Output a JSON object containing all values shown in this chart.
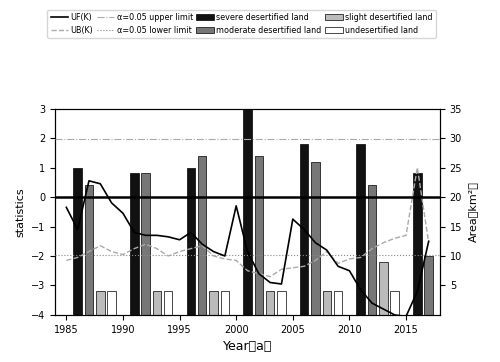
{
  "years": [
    1985,
    1986,
    1987,
    1988,
    1989,
    1990,
    1991,
    1992,
    1993,
    1994,
    1995,
    1996,
    1997,
    1998,
    1999,
    2000,
    2001,
    2002,
    2003,
    2004,
    2005,
    2006,
    2007,
    2008,
    2009,
    2010,
    2011,
    2012,
    2013,
    2014,
    2015,
    2016,
    2017
  ],
  "UF_K": [
    -0.35,
    -1.1,
    0.55,
    0.45,
    -0.2,
    -0.55,
    -1.2,
    -1.3,
    -1.3,
    -1.35,
    -1.45,
    -1.2,
    -1.6,
    -1.85,
    -2.0,
    -0.3,
    -1.85,
    -2.6,
    -2.9,
    -2.95,
    -0.75,
    -1.1,
    -1.55,
    -1.8,
    -2.35,
    -2.5,
    -3.15,
    -3.6,
    -3.8,
    -4.0,
    -4.05,
    -3.2,
    -1.5
  ],
  "UB_K_full": [
    -2.15,
    -2.05,
    -1.85,
    -1.65,
    -1.85,
    -1.95,
    -1.75,
    -1.6,
    -1.75,
    -2.0,
    -1.85,
    -1.75,
    -1.65,
    -2.0,
    -2.1,
    -2.15,
    -2.5,
    -2.6,
    -2.7,
    -2.45,
    -2.4,
    -2.35,
    -2.15,
    -1.85,
    -2.25,
    -2.1,
    -2.05,
    -1.75,
    -1.55,
    -1.4,
    -1.3,
    1.0,
    -1.55
  ],
  "upper_limit": 1.96,
  "lower_limit": -1.96,
  "bar_years_severe": [
    1986,
    1991,
    1996,
    2001,
    2006,
    2011,
    2016
  ],
  "bar_severe": [
    25,
    24,
    25,
    36,
    29,
    29,
    24
  ],
  "bar_years_moderate": [
    1987,
    1992,
    1997,
    2002,
    2007,
    2012,
    2017
  ],
  "bar_moderate": [
    22,
    24,
    27,
    27,
    26,
    22,
    10
  ],
  "bar_years_slight": [
    1988,
    1993,
    1998,
    2003,
    2008,
    2013
  ],
  "bar_slight": [
    4,
    4,
    4,
    4,
    4,
    9
  ],
  "bar_years_undesert": [
    1989,
    1994,
    1999,
    2004,
    2009,
    2014
  ],
  "bar_undesert": [
    4,
    4,
    4,
    4,
    4,
    4
  ],
  "ylim_left": [
    -4,
    3
  ],
  "ylim_right": [
    0,
    35
  ],
  "yticks_right": [
    5,
    10,
    15,
    20,
    25,
    30,
    35
  ],
  "ylabel_left": "statistics",
  "ylabel_right": "Area（km²）",
  "xlabel": "Year（a）",
  "color_UF": "#000000",
  "color_UB": "#aaaaaa",
  "color_upper": "#aaaaaa",
  "color_lower": "#888888",
  "color_severe": "#111111",
  "color_moderate": "#777777",
  "color_slight": "#bbbbbb",
  "color_undesert": "#ffffff",
  "bar_width": 0.75
}
